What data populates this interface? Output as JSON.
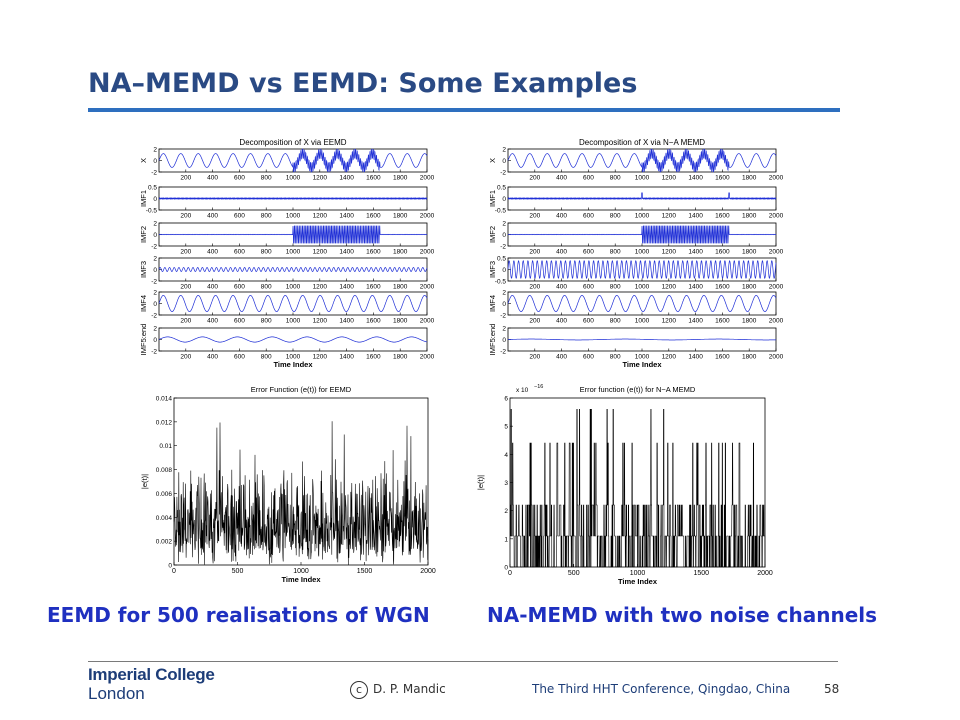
{
  "slide": {
    "title": "NA–MEMD vs EEMD: Some Examples",
    "caption_left": "EEMD for 500 realisations of WGN",
    "caption_right": "NA-MEMD with two noise channels",
    "footer": {
      "logo_line1": "Imperial College",
      "logo_line2": "London",
      "copyright_symbol": "c",
      "copyright": "D. P. Mandic",
      "conference": "The Third HHT Conference, Qingdao, China",
      "page": "58"
    }
  },
  "colors": {
    "title": "#2a4a84",
    "rule": "#2e6fbf",
    "caption": "#1f30c0",
    "signal": "#1f2fd6",
    "error": "#000000"
  },
  "chart_data": [
    {
      "type": "line",
      "title": "Decomposition of X via EEMD",
      "xlabel": "Time Index",
      "xlim": [
        0,
        2000
      ],
      "x_ticks": [
        200,
        400,
        600,
        800,
        1000,
        1200,
        1400,
        1600,
        1800,
        2000
      ],
      "panels": [
        {
          "ylabel": "X",
          "ylim": [
            -2,
            2
          ],
          "y_ticks": [
            "2",
            "0",
            "-2"
          ],
          "signal": "x"
        },
        {
          "ylabel": "IMF1",
          "ylim": [
            -0.5,
            0.5
          ],
          "y_ticks": [
            "0.5",
            "0",
            "-0.5"
          ],
          "signal": "imf1"
        },
        {
          "ylabel": "IMF2",
          "ylim": [
            -2,
            2
          ],
          "y_ticks": [
            "2",
            "0",
            "-2"
          ],
          "signal": "imf2"
        },
        {
          "ylabel": "IMF3",
          "ylim": [
            -2,
            2
          ],
          "y_ticks": [
            "2",
            "0",
            "-2"
          ],
          "signal": "imf3"
        },
        {
          "ylabel": "IMF4",
          "ylim": [
            -2,
            2
          ],
          "y_ticks": [
            "2",
            "0",
            "-2"
          ],
          "signal": "imf4"
        },
        {
          "ylabel": "IMF5:end",
          "ylim": [
            -2,
            2
          ],
          "y_ticks": [
            "2",
            "0",
            "-2"
          ],
          "signal": "imf5"
        }
      ]
    },
    {
      "type": "line",
      "title": "Decomposition of X via N−A MEMD",
      "xlabel": "Time Index",
      "xlim": [
        0,
        2000
      ],
      "x_ticks": [
        200,
        400,
        600,
        800,
        1000,
        1200,
        1400,
        1600,
        1800,
        2000
      ],
      "panels": [
        {
          "ylabel": "X",
          "ylim": [
            -2,
            2
          ],
          "y_ticks": [
            "2",
            "0",
            "-2"
          ],
          "signal": "x"
        },
        {
          "ylabel": "IMF1",
          "ylim": [
            -0.5,
            0.5
          ],
          "y_ticks": [
            "0.5",
            "0",
            "-0.5"
          ],
          "signal": "imf1"
        },
        {
          "ylabel": "IMF2",
          "ylim": [
            -2,
            2
          ],
          "y_ticks": [
            "2",
            "0",
            "-2"
          ],
          "signal": "imf2"
        },
        {
          "ylabel": "IMF3",
          "ylim": [
            -0.5,
            0.5
          ],
          "y_ticks": [
            "0.5",
            "0",
            "-0.5"
          ],
          "signal": "imf3"
        },
        {
          "ylabel": "IMF4",
          "ylim": [
            -2,
            2
          ],
          "y_ticks": [
            "2",
            "0",
            "-2"
          ],
          "signal": "imf4"
        },
        {
          "ylabel": "IMF5:end",
          "ylim": [
            -2,
            2
          ],
          "y_ticks": [
            "2",
            "0",
            "-2"
          ],
          "signal": "imf5"
        }
      ]
    },
    {
      "type": "line",
      "title": "Error Function (e(t)) for EEMD",
      "xlabel": "Time Index",
      "ylabel": "|e(t)|",
      "xlim": [
        0,
        2000
      ],
      "ylim": [
        0,
        0.014
      ],
      "x_ticks": [
        0,
        500,
        1000,
        1500,
        2000
      ],
      "y_ticks": [
        "0",
        "0.002",
        "0.004",
        "0.006",
        "0.008",
        "0.01",
        "0.012",
        "0.014"
      ],
      "typical_range": [
        0.001,
        0.006
      ],
      "peak": 0.0122
    },
    {
      "type": "line",
      "title": "Error function (e(t)) for N−A MEMD",
      "xlabel": "Time Index",
      "ylabel": "|e(t)|",
      "multiplier": "x 10",
      "multiplier_exp": "−16",
      "xlim": [
        0,
        2000
      ],
      "ylim": [
        0,
        6
      ],
      "x_ticks": [
        0,
        500,
        1000,
        1500,
        2000
      ],
      "y_ticks": [
        "0",
        "1",
        "2",
        "3",
        "4",
        "5",
        "6"
      ],
      "levels": [
        0,
        1.1,
        2.2,
        4.4,
        5.6
      ]
    }
  ]
}
